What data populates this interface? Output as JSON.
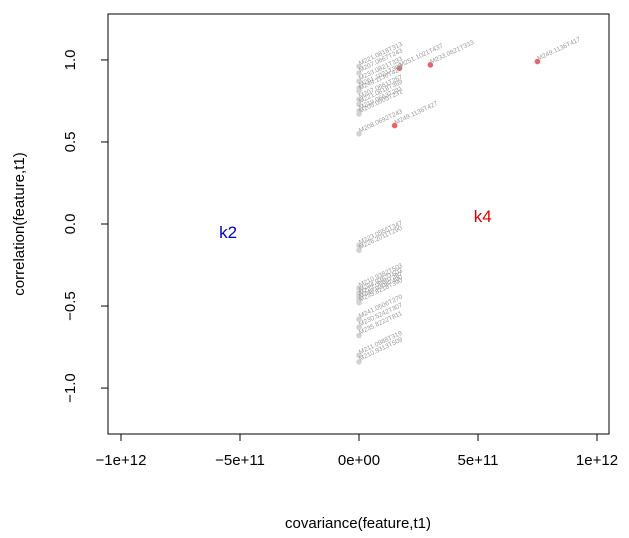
{
  "chart_data": {
    "type": "scatter",
    "title": "",
    "xlabel": "covariance(feature,t1)",
    "ylabel": "correlation(feature,t1)",
    "xlim": [
      -1000000000000.0,
      1000000000000.0
    ],
    "ylim": [
      -1.28,
      1.28
    ],
    "x_ticks": [
      {
        "value": -1000000000000.0,
        "label": "−1e+12"
      },
      {
        "value": -500000000000.0,
        "label": "−5e+11"
      },
      {
        "value": 0,
        "label": "0e+00"
      },
      {
        "value": 500000000000.0,
        "label": "5e+11"
      },
      {
        "value": 1000000000000.0,
        "label": "1e+12"
      }
    ],
    "y_ticks": [
      {
        "value": -1.0,
        "label": "−1.0"
      },
      {
        "value": -0.5,
        "label": "−0.5"
      },
      {
        "value": 0.0,
        "label": "0.0"
      },
      {
        "value": 0.5,
        "label": "0.5"
      },
      {
        "value": 1.0,
        "label": "1.0"
      }
    ],
    "grid": false,
    "group_labels": [
      {
        "text": "k2",
        "x": -550000000000.0,
        "y": -0.05,
        "color": "#0000cc"
      },
      {
        "text": "k4",
        "x": 520000000000.0,
        "y": 0.05,
        "color": "#dd0000"
      }
    ],
    "colors": {
      "highlight": "#e8646b",
      "other": "#d3d3d3",
      "label": "#9a9a9a"
    },
    "series": [
      {
        "highlight": true,
        "points": [
          {
            "x": 750000000000.0,
            "y": 0.99,
            "label": "M249.1136T417"
          },
          {
            "x": 300000000000.0,
            "y": 0.97,
            "label": "M233.0821T333"
          },
          {
            "x": 170000000000.0,
            "y": 0.95,
            "label": "M251.1021T437"
          },
          {
            "x": 150000000000.0,
            "y": 0.6,
            "label": "M249.1136T427"
          }
        ]
      },
      {
        "highlight": false,
        "points": [
          {
            "x": 0,
            "y": 0.96,
            "label": "M221.0818T313"
          },
          {
            "x": 0,
            "y": 0.92,
            "label": "M207.0667T243"
          },
          {
            "x": 0,
            "y": 0.87,
            "label": "M233.0821T333"
          },
          {
            "x": 0,
            "y": 0.83,
            "label": "M261.1021T399"
          },
          {
            "x": 0,
            "y": 0.81,
            "label": "M249.1136T427"
          },
          {
            "x": 0,
            "y": 0.76,
            "label": "M207.0661T267"
          },
          {
            "x": 0,
            "y": 0.73,
            "label": "M221.0818T369"
          },
          {
            "x": 0,
            "y": 0.69,
            "label": "M219.0663T231"
          },
          {
            "x": 0,
            "y": 0.67,
            "label": "M205.0505T231"
          },
          {
            "x": 0,
            "y": 0.55,
            "label": "M208.0692T243"
          },
          {
            "x": 0,
            "y": -0.13,
            "label": "M223.0555T347"
          },
          {
            "x": 0,
            "y": -0.16,
            "label": "M226.2011T290"
          },
          {
            "x": 0,
            "y": -0.39,
            "label": "M210.9382T503"
          },
          {
            "x": 0,
            "y": -0.42,
            "label": "M234.9357T503"
          },
          {
            "x": 0,
            "y": -0.44,
            "label": "M223.0555T287"
          },
          {
            "x": 0,
            "y": -0.46,
            "label": "M249.9308T490"
          },
          {
            "x": 0,
            "y": -0.48,
            "label": "M235.8218T390"
          },
          {
            "x": 0,
            "y": -0.58,
            "label": "M241.0506T270"
          },
          {
            "x": 0,
            "y": -0.63,
            "label": "M230.5242T307"
          },
          {
            "x": 0,
            "y": -0.68,
            "label": "M235.8222T811"
          },
          {
            "x": 0,
            "y": -0.8,
            "label": "M211.0988T319"
          },
          {
            "x": 0,
            "y": -0.84,
            "label": "M210.9313T509"
          }
        ]
      }
    ]
  }
}
